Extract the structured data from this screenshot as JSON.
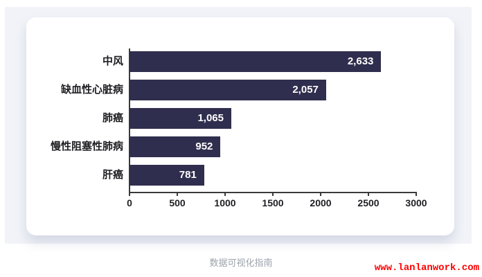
{
  "page": {
    "caption": "数据可视化指南",
    "watermark": "www.lanlanwork.com"
  },
  "colors": {
    "page_bg": "#ffffff",
    "panel_bg": "#f1f3f8",
    "card_bg": "#ffffff",
    "bar": "#302e4e",
    "axis": "#3a3a3a",
    "category_label": "#1f1f23",
    "tick_label": "#1f1f23",
    "value_label": "#ffffff",
    "caption": "#9ca3ab",
    "watermark": "#ff0000"
  },
  "chart_data": {
    "type": "bar",
    "orientation": "horizontal",
    "title": "",
    "categories": [
      "中风",
      "缺血性心脏病",
      "肺癌",
      "慢性阻塞性肺病",
      "肝癌"
    ],
    "values": [
      2633,
      2057,
      1065,
      952,
      781
    ],
    "value_labels": [
      "2,633",
      "2,057",
      "1,065",
      "952",
      "781"
    ],
    "xlim": [
      0,
      3000
    ],
    "x_ticks": [
      0,
      500,
      1000,
      1500,
      2000,
      2500,
      3000
    ],
    "x_tick_labels": [
      "0",
      "500",
      "1000",
      "1500",
      "2000",
      "2500",
      "3000"
    ],
    "grid": false,
    "legend": "none"
  }
}
